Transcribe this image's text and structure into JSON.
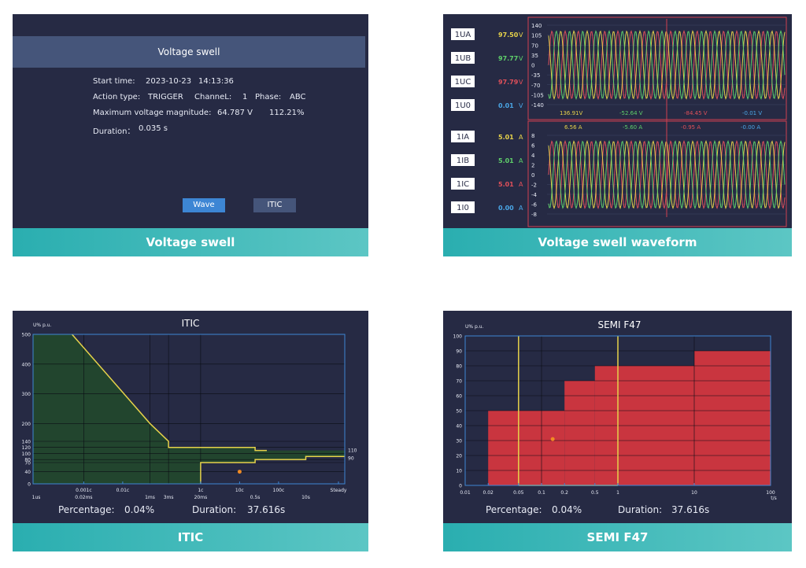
{
  "swell": {
    "header": "Voltage swell",
    "start_time_label": "Start time:",
    "start_date": "2023-10-23",
    "start_clock": "14:13:36",
    "action_type_label": "Action type:",
    "action_type_value": "TRIGGER",
    "channel_label": "ChanneL:",
    "channel_value": "1",
    "phase_label": "Phase:",
    "phase_value": "ABC",
    "max_label": "Maximum voltage magnitude:",
    "max_value": "64.787 V",
    "max_percent": "112.21%",
    "duration_label": "Duration：",
    "duration_value": "0.035 s",
    "wave_button": "Wave",
    "itic_button": "ITIC",
    "caption": "Voltage swell"
  },
  "waveform": {
    "caption": "Voltage swell waveform",
    "voltage_channels": [
      {
        "name": "1UA",
        "value": "97.50",
        "unit": "V",
        "color": "#e6d24a"
      },
      {
        "name": "1UB",
        "value": "97.77",
        "unit": "V",
        "color": "#5fd06a"
      },
      {
        "name": "1UC",
        "value": "97.79",
        "unit": "V",
        "color": "#e0505a"
      },
      {
        "name": "1U0",
        "value": "0.01",
        "unit": "V",
        "color": "#4aa6e6"
      }
    ],
    "current_channels": [
      {
        "name": "1IA",
        "value": "5.01",
        "unit": "A",
        "color": "#e6d24a"
      },
      {
        "name": "1IB",
        "value": "5.01",
        "unit": "A",
        "color": "#5fd06a"
      },
      {
        "name": "1IC",
        "value": "5.01",
        "unit": "A",
        "color": "#e0505a"
      },
      {
        "name": "1I0",
        "value": "0.00",
        "unit": "A",
        "color": "#4aa6e6"
      }
    ],
    "voltage_ticks": [
      "140",
      "105",
      "70",
      "35",
      "0",
      "-35",
      "-70",
      "-105",
      "-140"
    ],
    "current_ticks": [
      "8",
      "6",
      "4",
      "2",
      "0",
      "-2",
      "-4",
      "-6",
      "-8"
    ],
    "voltage_readout": [
      "136.91V",
      "-52.64 V",
      "-84.45 V",
      "-0.01 V"
    ],
    "current_readout": [
      "6.56 A",
      "-5.60 A",
      "-0.95 A",
      "-0.00 A"
    ],
    "readout_colors": [
      "#e6d24a",
      "#5fd06a",
      "#e0505a",
      "#4aa6e6"
    ]
  },
  "itic": {
    "title": "ITIC",
    "ylabel": "U% p.u.",
    "percentage_label": "Percentage:",
    "percentage_value": "0.04%",
    "duration_label": "Duration:",
    "duration_value": "37.616s",
    "caption": "ITIC",
    "right_labels": [
      "110",
      "90"
    ]
  },
  "semi": {
    "title": "SEMI  F47",
    "ylabel": "U% p.u.",
    "xlabel": "t/s",
    "percentage_label": "Percentage:",
    "percentage_value": "0.04%",
    "duration_label": "Duration:",
    "duration_value": "37.616s",
    "caption": "SEMI F47"
  },
  "chart_data": [
    {
      "type": "area",
      "title": "ITIC",
      "ylabel": "U% p.u.",
      "yticks": [
        "500",
        "400",
        "300",
        "200",
        "140",
        "120",
        "100",
        "80",
        "70",
        "40",
        "0"
      ],
      "xticks_top": [
        "0.001c",
        "0.01c",
        "1c",
        "10c",
        "100c",
        "Steady"
      ],
      "xticks_bottom": [
        "1us",
        "0.02ms",
        "1ms",
        "3ms",
        "20ms",
        "0.5s",
        "10s"
      ],
      "upper_curve": [
        [
          0.01,
          500
        ],
        [
          1,
          200
        ],
        [
          3,
          140
        ],
        [
          3,
          120
        ],
        [
          500,
          120
        ],
        [
          500,
          110
        ],
        [
          1000,
          110
        ]
      ],
      "lower_curve": [
        [
          20,
          0
        ],
        [
          20,
          70
        ],
        [
          500,
          70
        ],
        [
          500,
          80
        ],
        [
          10000,
          80
        ],
        [
          10000,
          90
        ],
        [
          100000,
          90
        ]
      ],
      "event_point": {
        "x": 10,
        "y": 40
      }
    },
    {
      "type": "area",
      "title": "SEMI  F47",
      "ylabel": "U% p.u.",
      "xlabel": "t/s",
      "xscale": "log",
      "xticks": [
        "0.01",
        "0.02",
        "0.05",
        "0.1",
        "0.2",
        "0.5",
        "1",
        "10",
        "100"
      ],
      "yticks": [
        "0",
        "10",
        "20",
        "30",
        "40",
        "50",
        "60",
        "70",
        "80",
        "90",
        "100"
      ],
      "steps": [
        {
          "from": 0.02,
          "to": 0.2,
          "level": 50
        },
        {
          "from": 0.2,
          "to": 0.5,
          "level": 70
        },
        {
          "from": 0.5,
          "to": 10,
          "level": 80
        },
        {
          "from": 10,
          "to": 100,
          "level": 90
        }
      ],
      "vertical_markers": [
        0.05,
        1
      ],
      "event_point": {
        "x": 0.14,
        "y": 31
      }
    }
  ]
}
